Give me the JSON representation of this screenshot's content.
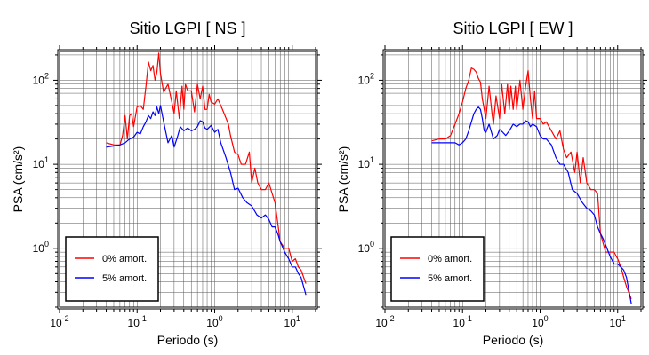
{
  "chart_data": [
    {
      "type": "line",
      "title": "Sitio LGPI [ NS ]",
      "xlabel": "Periodo (s)",
      "ylabel": "PSA (cm/s²)",
      "xscale": "log",
      "yscale": "log",
      "xlim": [
        0.01,
        20
      ],
      "ylim": [
        0.2,
        220
      ],
      "x_ticks": [
        {
          "base": "10",
          "exp": "-2"
        },
        {
          "base": "10",
          "exp": "-1"
        },
        {
          "base": "10",
          "exp": "0"
        },
        {
          "base": "10",
          "exp": "1"
        }
      ],
      "y_ticks": [
        {
          "base": "10",
          "exp": "0"
        },
        {
          "base": "10",
          "exp": "1"
        },
        {
          "base": "10",
          "exp": "2"
        }
      ],
      "grid": true,
      "legend_position": "bottom-left",
      "series": [
        {
          "name": "0% amort.",
          "color": "#ff0000",
          "x": [
            0.04,
            0.05,
            0.06,
            0.065,
            0.07,
            0.075,
            0.08,
            0.085,
            0.09,
            0.1,
            0.11,
            0.12,
            0.13,
            0.14,
            0.15,
            0.16,
            0.17,
            0.18,
            0.19,
            0.2,
            0.22,
            0.25,
            0.28,
            0.3,
            0.32,
            0.35,
            0.38,
            0.4,
            0.42,
            0.45,
            0.5,
            0.55,
            0.6,
            0.65,
            0.7,
            0.75,
            0.8,
            0.85,
            0.9,
            1.0,
            1.1,
            1.2,
            1.3,
            1.5,
            1.6,
            1.8,
            2.0,
            2.2,
            2.5,
            2.8,
            3.0,
            3.3,
            3.6,
            4.0,
            4.5,
            5.0,
            5.5,
            6.0,
            7.0,
            8.0,
            9.0,
            10.0,
            11.0,
            12.0,
            13.0,
            15.0
          ],
          "y": [
            18,
            17,
            17,
            22,
            38,
            20,
            38,
            40,
            28,
            48,
            50,
            45,
            85,
            165,
            130,
            150,
            100,
            125,
            210,
            120,
            72,
            90,
            55,
            40,
            75,
            35,
            85,
            45,
            90,
            75,
            75,
            42,
            90,
            60,
            85,
            45,
            45,
            68,
            55,
            52,
            60,
            50,
            42,
            30,
            22,
            14,
            13,
            10,
            10,
            14,
            6,
            9,
            6,
            5,
            5,
            6,
            4.5,
            3.5,
            1.2,
            1.0,
            1.0,
            0.7,
            0.75,
            0.6,
            0.55,
            0.38
          ]
        },
        {
          "name": "5% amort.",
          "color": "#0000ff",
          "x": [
            0.04,
            0.05,
            0.06,
            0.07,
            0.08,
            0.09,
            0.1,
            0.11,
            0.12,
            0.13,
            0.14,
            0.15,
            0.16,
            0.17,
            0.18,
            0.19,
            0.2,
            0.22,
            0.25,
            0.28,
            0.3,
            0.33,
            0.36,
            0.4,
            0.45,
            0.5,
            0.55,
            0.6,
            0.65,
            0.7,
            0.75,
            0.8,
            0.9,
            1.0,
            1.1,
            1.2,
            1.4,
            1.6,
            1.8,
            2.0,
            2.3,
            2.6,
            3.0,
            3.5,
            4.0,
            4.5,
            5.0,
            5.5,
            6.0,
            6.5,
            7.0,
            8.0,
            9.0,
            10.0,
            11.0,
            12.0,
            13.0,
            15.0
          ],
          "y": [
            16,
            16.5,
            17,
            18,
            20,
            21,
            24,
            23,
            28,
            32,
            38,
            35,
            42,
            38,
            48,
            40,
            50,
            32,
            18,
            22,
            16,
            21,
            28,
            25,
            27,
            25,
            26,
            28,
            33,
            32,
            27,
            26,
            29,
            24,
            26,
            18,
            12,
            8,
            5,
            5.2,
            4,
            3.5,
            3.2,
            2.5,
            2.3,
            2.5,
            2.2,
            1.8,
            1.8,
            1.5,
            1.2,
            0.9,
            0.75,
            0.6,
            0.6,
            0.5,
            0.45,
            0.28
          ]
        }
      ]
    },
    {
      "type": "line",
      "title": "Sitio LGPI [ EW ]",
      "xlabel": "Periodo (s)",
      "ylabel": "PSA (cm/s²)",
      "xscale": "log",
      "yscale": "log",
      "xlim": [
        0.01,
        20
      ],
      "ylim": [
        0.2,
        220
      ],
      "x_ticks": [
        {
          "base": "10",
          "exp": "-2"
        },
        {
          "base": "10",
          "exp": "-1"
        },
        {
          "base": "10",
          "exp": "0"
        },
        {
          "base": "10",
          "exp": "1"
        }
      ],
      "y_ticks": [
        {
          "base": "10",
          "exp": "0"
        },
        {
          "base": "10",
          "exp": "1"
        },
        {
          "base": "10",
          "exp": "2"
        }
      ],
      "grid": true,
      "legend_position": "bottom-left",
      "series": [
        {
          "name": "0% amort.",
          "color": "#ff0000",
          "x": [
            0.04,
            0.05,
            0.06,
            0.07,
            0.08,
            0.09,
            0.1,
            0.11,
            0.12,
            0.13,
            0.14,
            0.15,
            0.16,
            0.17,
            0.18,
            0.2,
            0.22,
            0.24,
            0.25,
            0.27,
            0.3,
            0.32,
            0.35,
            0.38,
            0.4,
            0.42,
            0.45,
            0.48,
            0.5,
            0.55,
            0.6,
            0.65,
            0.7,
            0.75,
            0.8,
            0.85,
            0.9,
            1.0,
            1.1,
            1.2,
            1.4,
            1.6,
            1.8,
            2.0,
            2.2,
            2.5,
            2.8,
            3.0,
            3.3,
            3.6,
            4.0,
            4.5,
            5.0,
            5.5,
            6.0,
            7.0,
            8.0,
            9.0,
            10.0,
            11.0,
            12.0,
            13.0,
            15.0
          ],
          "y": [
            19,
            20,
            20,
            22,
            30,
            40,
            55,
            80,
            100,
            140,
            135,
            125,
            105,
            95,
            60,
            35,
            85,
            40,
            30,
            65,
            35,
            90,
            40,
            90,
            45,
            85,
            45,
            85,
            45,
            100,
            45,
            85,
            130,
            60,
            35,
            75,
            35,
            35,
            30,
            32,
            25,
            20,
            25,
            15,
            12,
            14,
            8,
            14,
            6,
            12,
            6,
            5,
            5,
            4.5,
            1.5,
            0.9,
            0.9,
            0.9,
            0.75,
            0.6,
            0.45,
            0.35,
            0.25
          ]
        },
        {
          "name": "5% amort.",
          "color": "#0000ff",
          "x": [
            0.04,
            0.05,
            0.06,
            0.07,
            0.08,
            0.09,
            0.1,
            0.11,
            0.12,
            0.13,
            0.14,
            0.15,
            0.16,
            0.17,
            0.18,
            0.19,
            0.2,
            0.22,
            0.25,
            0.28,
            0.3,
            0.33,
            0.36,
            0.4,
            0.45,
            0.5,
            0.55,
            0.6,
            0.65,
            0.7,
            0.75,
            0.8,
            0.9,
            1.0,
            1.1,
            1.2,
            1.4,
            1.6,
            1.8,
            2.0,
            2.3,
            2.6,
            3.0,
            3.5,
            4.0,
            4.5,
            5.0,
            5.5,
            6.0,
            6.5,
            7.0,
            8.0,
            9.0,
            10.0,
            11.0,
            12.0,
            13.0,
            15.0
          ],
          "y": [
            18,
            18,
            18,
            18,
            18,
            17,
            18,
            20,
            25,
            32,
            40,
            45,
            48,
            45,
            35,
            25,
            24,
            30,
            20,
            22,
            26,
            24,
            22,
            25,
            30,
            28,
            30,
            30,
            33,
            32,
            28,
            30,
            28,
            22,
            20,
            20,
            17,
            12,
            10,
            10,
            8,
            5,
            4.5,
            3.5,
            3,
            2.8,
            2.5,
            1.8,
            1.5,
            1.3,
            1.1,
            0.8,
            0.65,
            0.65,
            0.6,
            0.55,
            0.45,
            0.22
          ]
        }
      ]
    }
  ]
}
